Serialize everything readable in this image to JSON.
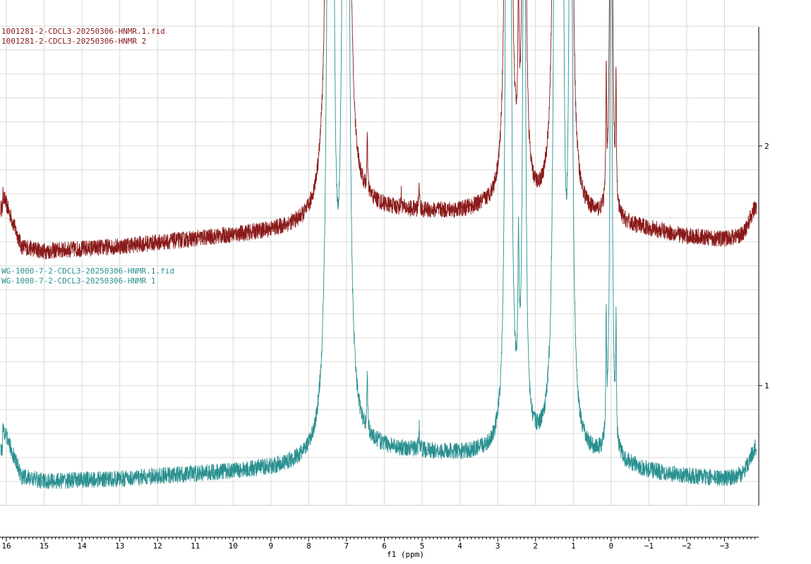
{
  "chart_data": {
    "type": "line",
    "title": "",
    "xlabel": "f1 (ppm)",
    "ylabel": "",
    "xlim": [
      16.2,
      -3.9
    ],
    "ylim": [
      0.5,
      2.5
    ],
    "x_ticks": [
      16,
      15,
      14,
      13,
      12,
      11,
      10,
      9,
      8,
      7,
      6,
      5,
      4,
      3,
      2,
      1,
      0,
      -1,
      -2,
      -3
    ],
    "x_tick_labels": [
      "16",
      "15",
      "14",
      "13",
      "12",
      "11",
      "10",
      "9",
      "8",
      "7",
      "6",
      "5",
      "4",
      "3",
      "2",
      "1",
      "0",
      "−1",
      "−2",
      "−3"
    ],
    "y_ticks": [
      1,
      2
    ],
    "y_tick_labels": [
      "1",
      "2"
    ],
    "grid": true,
    "series": [
      {
        "name": "1001281-2-CDCL3-20250306-HNMR.1.fid",
        "label_line2": "1001281-2-CDCL3-20250306-HNMR 2",
        "color": "#8b1a1a",
        "baseline_points": [
          [
            16.1,
            1.8
          ],
          [
            15.6,
            1.58
          ],
          [
            15,
            1.56
          ],
          [
            13,
            1.58
          ],
          [
            11,
            1.61
          ],
          [
            9,
            1.64
          ],
          [
            8,
            1.66
          ],
          [
            7.6,
            1.7
          ],
          [
            6.5,
            1.73
          ],
          [
            5,
            1.72
          ],
          [
            4,
            1.72
          ],
          [
            3,
            1.74
          ],
          [
            2.5,
            1.72
          ],
          [
            2,
            1.72
          ],
          [
            1,
            1.7
          ],
          [
            0,
            1.67
          ],
          [
            -1,
            1.65
          ],
          [
            -2,
            1.62
          ],
          [
            -3,
            1.61
          ],
          [
            -3.5,
            1.63
          ],
          [
            -3.8,
            1.74
          ]
        ],
        "peaks": [
          {
            "ppm": 7.45,
            "height": 3.0,
            "width": 0.07
          },
          {
            "ppm": 7.39,
            "height": 3.0,
            "width": 0.05
          },
          {
            "ppm": 7.05,
            "height": 3.0,
            "width": 0.07
          },
          {
            "ppm": 6.98,
            "height": 3.0,
            "width": 0.05
          },
          {
            "ppm": 6.45,
            "height": 0.22,
            "width": 0.012
          },
          {
            "ppm": 5.08,
            "height": 0.12,
            "width": 0.012
          },
          {
            "ppm": 5.55,
            "height": 0.06,
            "width": 0.012
          },
          {
            "ppm": 2.75,
            "height": 3.0,
            "width": 0.05
          },
          {
            "ppm": 2.68,
            "height": 3.0,
            "width": 0.04
          },
          {
            "ppm": 2.45,
            "height": 0.62,
            "width": 0.02
          },
          {
            "ppm": 2.3,
            "height": 3.0,
            "width": 0.04
          },
          {
            "ppm": 1.47,
            "height": 3.0,
            "width": 0.05
          },
          {
            "ppm": 1.38,
            "height": 3.0,
            "width": 0.05
          },
          {
            "ppm": 1.3,
            "height": 3.0,
            "width": 0.04
          },
          {
            "ppm": 1.07,
            "height": 3.0,
            "width": 0.05
          },
          {
            "ppm": 0.13,
            "height": 0.52,
            "width": 0.012
          },
          {
            "ppm": 0.0,
            "height": 3.0,
            "width": 0.03
          },
          {
            "ppm": -0.13,
            "height": 0.48,
            "width": 0.012
          }
        ]
      },
      {
        "name": "WG-1000-7-2-CDCL3-20250306-HNMR.1.fid",
        "label_line2": "WG-1000-7-2-CDCL3-20250306-HNMR 1",
        "color": "#2a9090",
        "baseline_points": [
          [
            16.1,
            0.83
          ],
          [
            15.6,
            0.62
          ],
          [
            15,
            0.6
          ],
          [
            13,
            0.61
          ],
          [
            11,
            0.63
          ],
          [
            9,
            0.65
          ],
          [
            8,
            0.67
          ],
          [
            7.6,
            0.69
          ],
          [
            6.5,
            0.73
          ],
          [
            5,
            0.72
          ],
          [
            4,
            0.71
          ],
          [
            3,
            0.71
          ],
          [
            2.5,
            0.69
          ],
          [
            2,
            0.71
          ],
          [
            1,
            0.7
          ],
          [
            0,
            0.68
          ],
          [
            -1,
            0.64
          ],
          [
            -2,
            0.62
          ],
          [
            -3,
            0.61
          ],
          [
            -3.5,
            0.63
          ],
          [
            -3.8,
            0.74
          ]
        ],
        "peaks": [
          {
            "ppm": 7.45,
            "height": 3.0,
            "width": 0.07
          },
          {
            "ppm": 7.39,
            "height": 3.0,
            "width": 0.05
          },
          {
            "ppm": 7.05,
            "height": 3.0,
            "width": 0.07
          },
          {
            "ppm": 6.98,
            "height": 3.0,
            "width": 0.05
          },
          {
            "ppm": 6.45,
            "height": 0.25,
            "width": 0.012
          },
          {
            "ppm": 5.08,
            "height": 0.1,
            "width": 0.012
          },
          {
            "ppm": 2.75,
            "height": 3.0,
            "width": 0.05
          },
          {
            "ppm": 2.68,
            "height": 3.0,
            "width": 0.04
          },
          {
            "ppm": 2.45,
            "height": 0.6,
            "width": 0.02
          },
          {
            "ppm": 2.3,
            "height": 3.0,
            "width": 0.04
          },
          {
            "ppm": 1.47,
            "height": 3.0,
            "width": 0.05
          },
          {
            "ppm": 1.38,
            "height": 3.0,
            "width": 0.05
          },
          {
            "ppm": 1.3,
            "height": 3.0,
            "width": 0.04
          },
          {
            "ppm": 1.07,
            "height": 3.0,
            "width": 0.05
          },
          {
            "ppm": 0.13,
            "height": 0.5,
            "width": 0.012
          },
          {
            "ppm": 0.0,
            "height": 3.0,
            "width": 0.03
          },
          {
            "ppm": -0.13,
            "height": 0.46,
            "width": 0.012
          }
        ]
      }
    ]
  }
}
